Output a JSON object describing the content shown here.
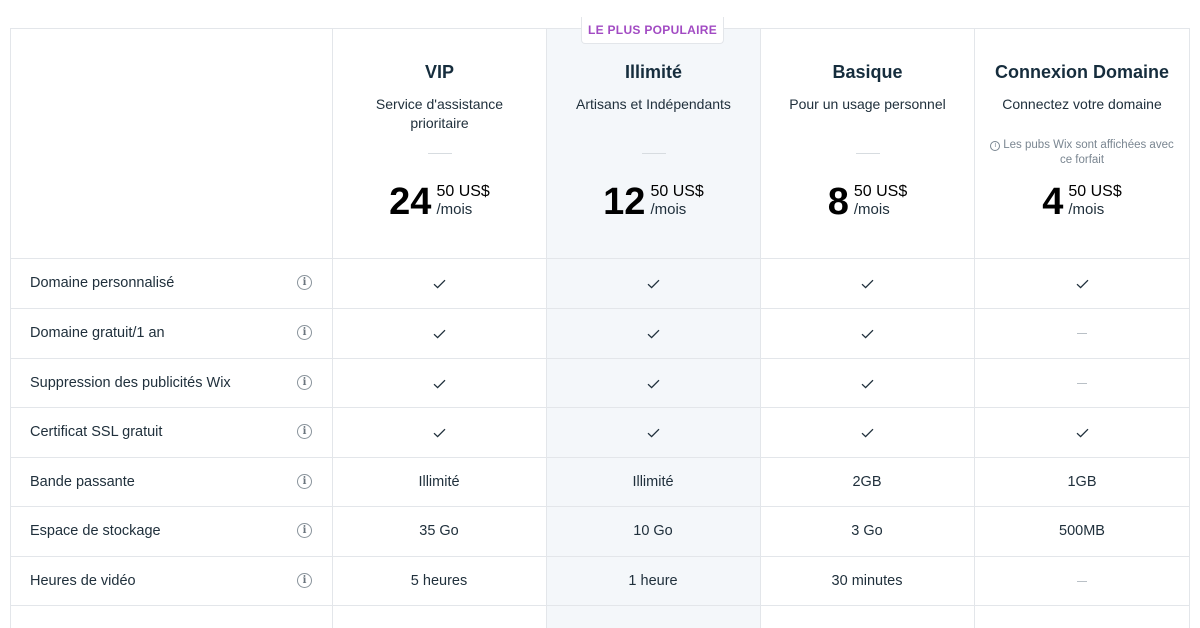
{
  "badge": "LE PLUS POPULAIRE",
  "plans": [
    {
      "name": "VIP",
      "desc": "Service d'assistance prioritaire",
      "note": "",
      "price_main": "24",
      "price_cents": "50 US$",
      "price_period": "/mois"
    },
    {
      "name": "Illimité",
      "desc": "Artisans et Indépendants",
      "note": "",
      "price_main": "12",
      "price_cents": "50 US$",
      "price_period": "/mois"
    },
    {
      "name": "Basique",
      "desc": "Pour un usage personnel",
      "note": "",
      "price_main": "8",
      "price_cents": "50 US$",
      "price_period": "/mois"
    },
    {
      "name": "Connexion Domaine",
      "desc": "Connectez votre domaine",
      "note": "Les pubs Wix sont affichées avec ce forfait",
      "price_main": "4",
      "price_cents": "50 US$",
      "price_period": "/mois"
    }
  ],
  "features": [
    {
      "label": "Domaine personnalisé",
      "values": [
        "check",
        "check",
        "check",
        "check"
      ]
    },
    {
      "label": "Domaine gratuit/1 an",
      "values": [
        "check",
        "check",
        "check",
        "none"
      ]
    },
    {
      "label": "Suppression des publicités Wix",
      "values": [
        "check",
        "check",
        "check",
        "none"
      ]
    },
    {
      "label": "Certificat SSL gratuit",
      "values": [
        "check",
        "check",
        "check",
        "check"
      ]
    },
    {
      "label": "Bande passante",
      "values": [
        "Illimité",
        "Illimité",
        "2GB",
        "1GB"
      ]
    },
    {
      "label": "Espace de stockage",
      "values": [
        "35 Go",
        "10 Go",
        "3 Go",
        "500MB"
      ]
    },
    {
      "label": "Heures de vidéo",
      "values": [
        "5 heures",
        "1 heure",
        "30 minutes",
        "none"
      ]
    }
  ],
  "icons": {
    "info": "info-icon",
    "check": "check-icon",
    "none": "dash-icon"
  }
}
